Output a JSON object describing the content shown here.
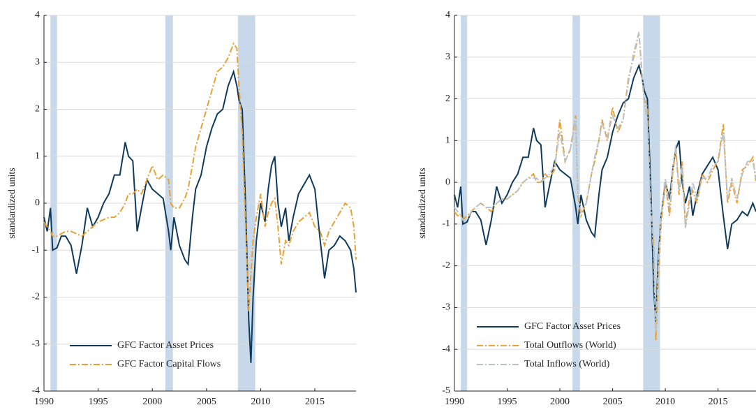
{
  "chart_data": [
    {
      "type": "line",
      "ylabel": "standardized units",
      "xlim": [
        1990,
        2018.8
      ],
      "ylim": [
        -4,
        4
      ],
      "xticks": [
        1990,
        1995,
        2000,
        2005,
        2010,
        2015
      ],
      "yticks": [
        -4,
        -3,
        -2,
        -1,
        0,
        1,
        2,
        3,
        4
      ],
      "grid": true,
      "legend": "lower center",
      "shaded_periods": [
        [
          1990.6,
          1991.2
        ],
        [
          2001.2,
          2001.9
        ],
        [
          2007.9,
          2009.5
        ]
      ],
      "shade_color": "#c6d8e9",
      "x": [
        1990.0,
        1990.3,
        1990.6,
        1990.8,
        1991.2,
        1991.6,
        1992.0,
        1992.5,
        1993.0,
        1993.5,
        1994.0,
        1994.5,
        1995.0,
        1995.5,
        1996.0,
        1996.5,
        1997.0,
        1997.5,
        1997.8,
        1998.2,
        1998.6,
        1999.0,
        1999.5,
        2000.0,
        2000.5,
        2001.0,
        2001.5,
        2001.7,
        2002.0,
        2002.5,
        2003.0,
        2003.3,
        2003.7,
        2004.0,
        2004.5,
        2005.0,
        2005.5,
        2006.0,
        2006.5,
        2007.0,
        2007.5,
        2007.8,
        2008.0,
        2008.3,
        2008.6,
        2008.9,
        2009.1,
        2009.3,
        2009.6,
        2010.0,
        2010.4,
        2010.7,
        2011.0,
        2011.3,
        2011.6,
        2011.9,
        2012.3,
        2012.6,
        2013.0,
        2013.5,
        2014.0,
        2014.5,
        2015.0,
        2015.5,
        2015.9,
        2016.3,
        2016.8,
        2017.3,
        2017.8,
        2018.3,
        2018.6,
        2018.8
      ],
      "series": [
        {
          "name": "GFC Factor Asset Prices",
          "color": "#0e3a5c",
          "style": "solid",
          "values": [
            -0.3,
            -0.6,
            -0.1,
            -1.0,
            -0.95,
            -0.7,
            -0.7,
            -0.9,
            -1.5,
            -0.9,
            -0.1,
            -0.5,
            -0.3,
            0.0,
            0.2,
            0.6,
            0.6,
            1.3,
            1.0,
            0.9,
            -0.6,
            -0.1,
            0.5,
            0.3,
            0.2,
            0.1,
            -0.6,
            -1.0,
            -0.3,
            -0.9,
            -1.2,
            -1.3,
            -0.3,
            0.3,
            0.6,
            1.2,
            1.6,
            1.9,
            2.0,
            2.5,
            2.8,
            2.5,
            2.2,
            2.0,
            0.0,
            -2.5,
            -3.4,
            -2.0,
            -0.8,
            0.0,
            -0.4,
            0.3,
            0.8,
            1.0,
            0.0,
            -0.5,
            -0.1,
            -0.8,
            -0.3,
            0.2,
            0.4,
            0.6,
            0.3,
            -0.8,
            -1.6,
            -1.0,
            -0.9,
            -0.7,
            -0.8,
            -1.0,
            -1.4,
            -1.9
          ]
        },
        {
          "name": "GFC Factor Capital Flows",
          "color": "#e9a136",
          "style": "dashdot",
          "values": [
            -0.4,
            -0.5,
            -0.6,
            -0.7,
            -0.7,
            -0.65,
            -0.6,
            -0.6,
            -0.65,
            -0.7,
            -0.6,
            -0.5,
            -0.4,
            -0.35,
            -0.3,
            -0.3,
            -0.2,
            0.0,
            0.2,
            0.2,
            0.3,
            0.2,
            0.5,
            0.8,
            0.5,
            0.6,
            0.5,
            0.0,
            -0.1,
            -0.1,
            0.1,
            0.3,
            0.8,
            1.2,
            1.6,
            2.0,
            2.4,
            2.8,
            2.9,
            3.1,
            3.4,
            3.3,
            2.5,
            1.5,
            -0.4,
            -2.3,
            -1.5,
            -0.8,
            -0.3,
            0.2,
            -0.5,
            -0.2,
            0.0,
            0.1,
            -0.5,
            -1.3,
            -0.8,
            -0.9,
            -0.6,
            -0.4,
            -0.3,
            -0.2,
            -0.5,
            -0.6,
            -0.9,
            -0.6,
            -0.4,
            -0.2,
            0.0,
            -0.1,
            -0.5,
            -1.2
          ]
        }
      ]
    },
    {
      "type": "line",
      "ylabel": "standardized units",
      "xlim": [
        1990,
        2018.6
      ],
      "ylim": [
        -5,
        4
      ],
      "xticks": [
        1990,
        1995,
        2000,
        2005,
        2010,
        2015
      ],
      "yticks": [
        -5,
        -4,
        -3,
        -2,
        -1,
        0,
        1,
        2,
        3,
        4
      ],
      "grid": true,
      "legend": "lower left",
      "shaded_periods": [
        [
          1990.6,
          1991.2
        ],
        [
          2001.2,
          2001.9
        ],
        [
          2007.9,
          2009.5
        ]
      ],
      "shade_color": "#c6d8e9",
      "x": [
        1990.0,
        1990.3,
        1990.6,
        1990.8,
        1991.2,
        1991.6,
        1992.0,
        1992.5,
        1993.0,
        1993.5,
        1994.0,
        1994.5,
        1995.0,
        1995.5,
        1996.0,
        1996.5,
        1997.0,
        1997.5,
        1997.8,
        1998.2,
        1998.6,
        1999.0,
        1999.5,
        2000.0,
        2000.5,
        2001.0,
        2001.5,
        2001.7,
        2002.0,
        2002.5,
        2003.0,
        2003.3,
        2003.7,
        2004.0,
        2004.5,
        2005.0,
        2005.5,
        2006.0,
        2006.5,
        2007.0,
        2007.5,
        2007.8,
        2008.0,
        2008.3,
        2008.6,
        2008.9,
        2009.1,
        2009.3,
        2009.6,
        2010.0,
        2010.4,
        2010.7,
        2011.0,
        2011.3,
        2011.6,
        2011.9,
        2012.3,
        2012.6,
        2013.0,
        2013.5,
        2014.0,
        2014.5,
        2015.0,
        2015.5,
        2015.9,
        2016.3,
        2016.8,
        2017.3,
        2017.8,
        2018.3,
        2018.6
      ],
      "series": [
        {
          "name": "GFC Factor Asset Prices",
          "color": "#0e3a5c",
          "style": "solid",
          "values": [
            -0.3,
            -0.6,
            -0.1,
            -1.0,
            -0.95,
            -0.7,
            -0.7,
            -0.9,
            -1.5,
            -0.9,
            -0.1,
            -0.5,
            -0.3,
            0.0,
            0.2,
            0.6,
            0.6,
            1.3,
            1.0,
            0.9,
            -0.6,
            -0.1,
            0.5,
            0.3,
            0.2,
            0.1,
            -0.6,
            -1.0,
            -0.3,
            -0.9,
            -1.2,
            -1.3,
            -0.3,
            0.3,
            0.6,
            1.2,
            1.6,
            1.9,
            2.0,
            2.5,
            2.8,
            2.5,
            2.2,
            2.0,
            0.0,
            -2.5,
            -3.4,
            -2.0,
            -0.8,
            0.0,
            -0.4,
            0.3,
            0.8,
            1.0,
            0.0,
            -0.5,
            -0.1,
            -0.8,
            -0.3,
            0.2,
            0.4,
            0.6,
            0.3,
            -0.8,
            -1.6,
            -1.0,
            -0.9,
            -0.7,
            -0.8,
            -0.5,
            -0.7
          ]
        },
        {
          "name": "Total Outflows (World)",
          "color": "#e9a136",
          "style": "dashdot",
          "values": [
            -0.7,
            -0.8,
            -0.8,
            -0.9,
            -0.8,
            -0.7,
            -0.6,
            -0.5,
            -0.6,
            -0.7,
            -0.5,
            -0.4,
            -0.4,
            -0.3,
            -0.2,
            0.0,
            0.1,
            0.2,
            0.0,
            0.0,
            0.2,
            0.1,
            0.3,
            1.5,
            0.5,
            0.8,
            1.6,
            -0.3,
            -0.8,
            -0.5,
            0.2,
            0.5,
            1.0,
            1.5,
            1.0,
            1.8,
            1.2,
            1.5,
            2.5,
            3.0,
            3.6,
            2.5,
            2.0,
            1.8,
            -0.5,
            -1.5,
            -3.8,
            -2.5,
            -1.0,
            0.0,
            -0.8,
            0.2,
            0.8,
            -0.3,
            0.5,
            -1.0,
            -0.4,
            -0.2,
            -0.5,
            0.2,
            0.0,
            0.3,
            0.5,
            1.4,
            -0.5,
            0.0,
            -0.5,
            0.3,
            0.4,
            0.6,
            0.0
          ]
        },
        {
          "name": "Total Inflows (World)",
          "color": "#b9c3cd",
          "style": "dashdot",
          "values": [
            -0.6,
            -0.7,
            -0.8,
            -0.9,
            -0.9,
            -0.7,
            -0.6,
            -0.5,
            -0.6,
            -0.6,
            -0.5,
            -0.4,
            -0.4,
            -0.3,
            -0.2,
            0.0,
            0.1,
            0.1,
            0.1,
            0.0,
            0.1,
            0.2,
            0.4,
            1.2,
            0.5,
            0.8,
            1.5,
            -0.2,
            -0.7,
            -0.5,
            0.2,
            0.6,
            1.0,
            1.4,
            1.1,
            1.6,
            1.3,
            1.5,
            2.4,
            3.1,
            3.6,
            2.6,
            1.9,
            1.5,
            -0.4,
            -1.8,
            -3.6,
            -2.2,
            -0.8,
            0.1,
            -0.6,
            0.3,
            0.9,
            -0.2,
            0.4,
            -1.1,
            -0.5,
            0.0,
            -0.4,
            0.1,
            0.1,
            0.4,
            0.5,
            1.2,
            -0.4,
            0.1,
            -0.4,
            0.2,
            0.5,
            0.5,
            0.1
          ]
        }
      ]
    }
  ]
}
